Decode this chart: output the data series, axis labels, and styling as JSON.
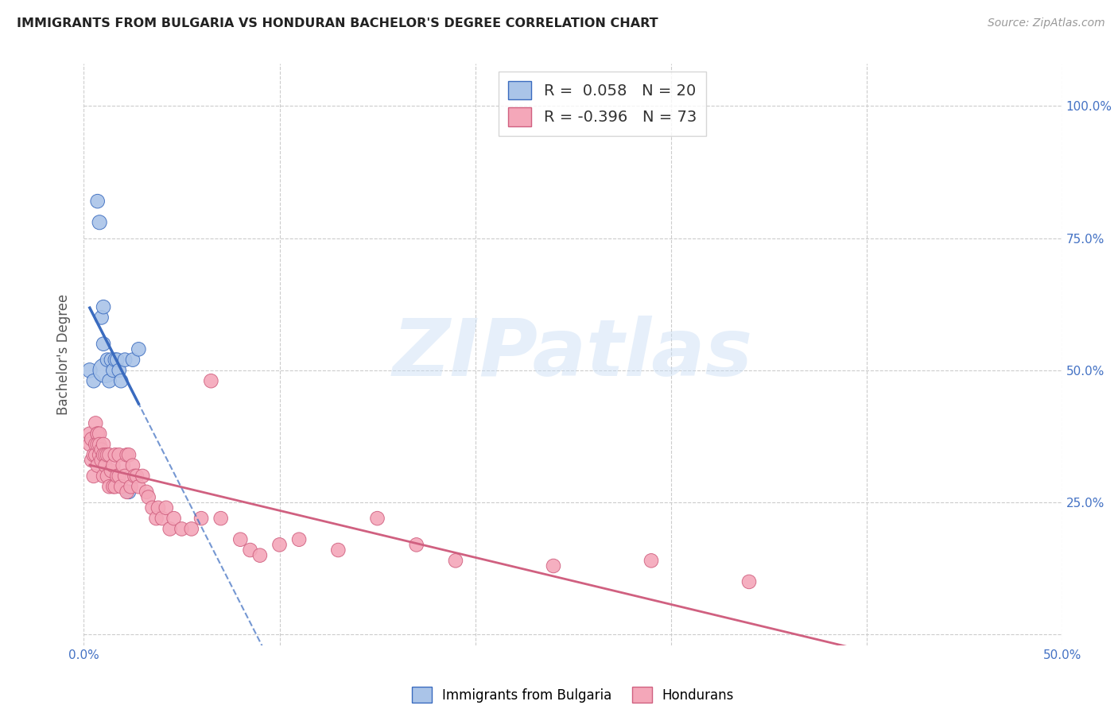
{
  "title": "IMMIGRANTS FROM BULGARIA VS HONDURAN BACHELOR'S DEGREE CORRELATION CHART",
  "source": "Source: ZipAtlas.com",
  "ylabel": "Bachelor's Degree",
  "xlim": [
    0.0,
    0.5
  ],
  "ylim": [
    -0.02,
    1.08
  ],
  "bg_color": "#ffffff",
  "grid_color": "#cccccc",
  "blue_fill": "#aac4e8",
  "blue_edge": "#3a6bbf",
  "blue_line": "#3a6bbf",
  "pink_fill": "#f4a7b9",
  "pink_edge": "#d06080",
  "pink_line": "#d06080",
  "label_color": "#4472c4",
  "watermark_color": "#c8ddf5",
  "watermark": "ZIPatlas",
  "legend_label1": "Immigrants from Bulgaria",
  "legend_label2": "Hondurans",
  "blue_R": 0.058,
  "blue_N": 20,
  "pink_R": -0.396,
  "pink_N": 73,
  "blue_x": [
    0.003,
    0.005,
    0.007,
    0.008,
    0.009,
    0.01,
    0.01,
    0.011,
    0.012,
    0.013,
    0.014,
    0.015,
    0.016,
    0.017,
    0.018,
    0.019,
    0.021,
    0.023,
    0.025,
    0.028
  ],
  "blue_y": [
    0.5,
    0.48,
    0.82,
    0.78,
    0.6,
    0.62,
    0.55,
    0.5,
    0.52,
    0.48,
    0.52,
    0.5,
    0.52,
    0.52,
    0.5,
    0.48,
    0.52,
    0.27,
    0.52,
    0.54
  ],
  "blue_s": [
    180,
    160,
    160,
    170,
    160,
    160,
    160,
    500,
    160,
    160,
    160,
    160,
    160,
    160,
    160,
    160,
    160,
    160,
    160,
    160
  ],
  "pink_x": [
    0.003,
    0.003,
    0.004,
    0.004,
    0.005,
    0.005,
    0.006,
    0.006,
    0.006,
    0.007,
    0.007,
    0.007,
    0.007,
    0.008,
    0.008,
    0.008,
    0.009,
    0.009,
    0.01,
    0.01,
    0.01,
    0.011,
    0.011,
    0.012,
    0.012,
    0.013,
    0.013,
    0.014,
    0.015,
    0.015,
    0.016,
    0.016,
    0.017,
    0.018,
    0.018,
    0.019,
    0.02,
    0.021,
    0.022,
    0.022,
    0.023,
    0.024,
    0.025,
    0.026,
    0.027,
    0.028,
    0.03,
    0.032,
    0.033,
    0.035,
    0.037,
    0.038,
    0.04,
    0.042,
    0.044,
    0.046,
    0.05,
    0.055,
    0.06,
    0.065,
    0.07,
    0.08,
    0.085,
    0.09,
    0.1,
    0.11,
    0.13,
    0.15,
    0.17,
    0.19,
    0.24,
    0.29,
    0.34
  ],
  "pink_y": [
    0.38,
    0.36,
    0.37,
    0.33,
    0.34,
    0.3,
    0.4,
    0.36,
    0.34,
    0.38,
    0.38,
    0.36,
    0.32,
    0.38,
    0.36,
    0.34,
    0.35,
    0.33,
    0.36,
    0.34,
    0.3,
    0.34,
    0.32,
    0.34,
    0.3,
    0.34,
    0.28,
    0.31,
    0.32,
    0.28,
    0.34,
    0.28,
    0.3,
    0.34,
    0.3,
    0.28,
    0.32,
    0.3,
    0.34,
    0.27,
    0.34,
    0.28,
    0.32,
    0.3,
    0.3,
    0.28,
    0.3,
    0.27,
    0.26,
    0.24,
    0.22,
    0.24,
    0.22,
    0.24,
    0.2,
    0.22,
    0.2,
    0.2,
    0.22,
    0.48,
    0.22,
    0.18,
    0.16,
    0.15,
    0.17,
    0.18,
    0.16,
    0.22,
    0.17,
    0.14,
    0.13,
    0.14,
    0.1
  ],
  "pink_s": [
    160,
    160,
    160,
    160,
    160,
    160,
    160,
    160,
    160,
    160,
    160,
    160,
    160,
    160,
    160,
    160,
    160,
    160,
    160,
    160,
    160,
    160,
    160,
    160,
    160,
    160,
    160,
    160,
    160,
    160,
    160,
    160,
    160,
    160,
    160,
    160,
    160,
    160,
    160,
    160,
    160,
    160,
    160,
    160,
    160,
    160,
    160,
    160,
    160,
    160,
    160,
    160,
    160,
    160,
    160,
    160,
    160,
    160,
    160,
    160,
    160,
    160,
    160,
    160,
    160,
    160,
    160,
    160,
    160,
    160,
    160,
    160,
    160
  ]
}
